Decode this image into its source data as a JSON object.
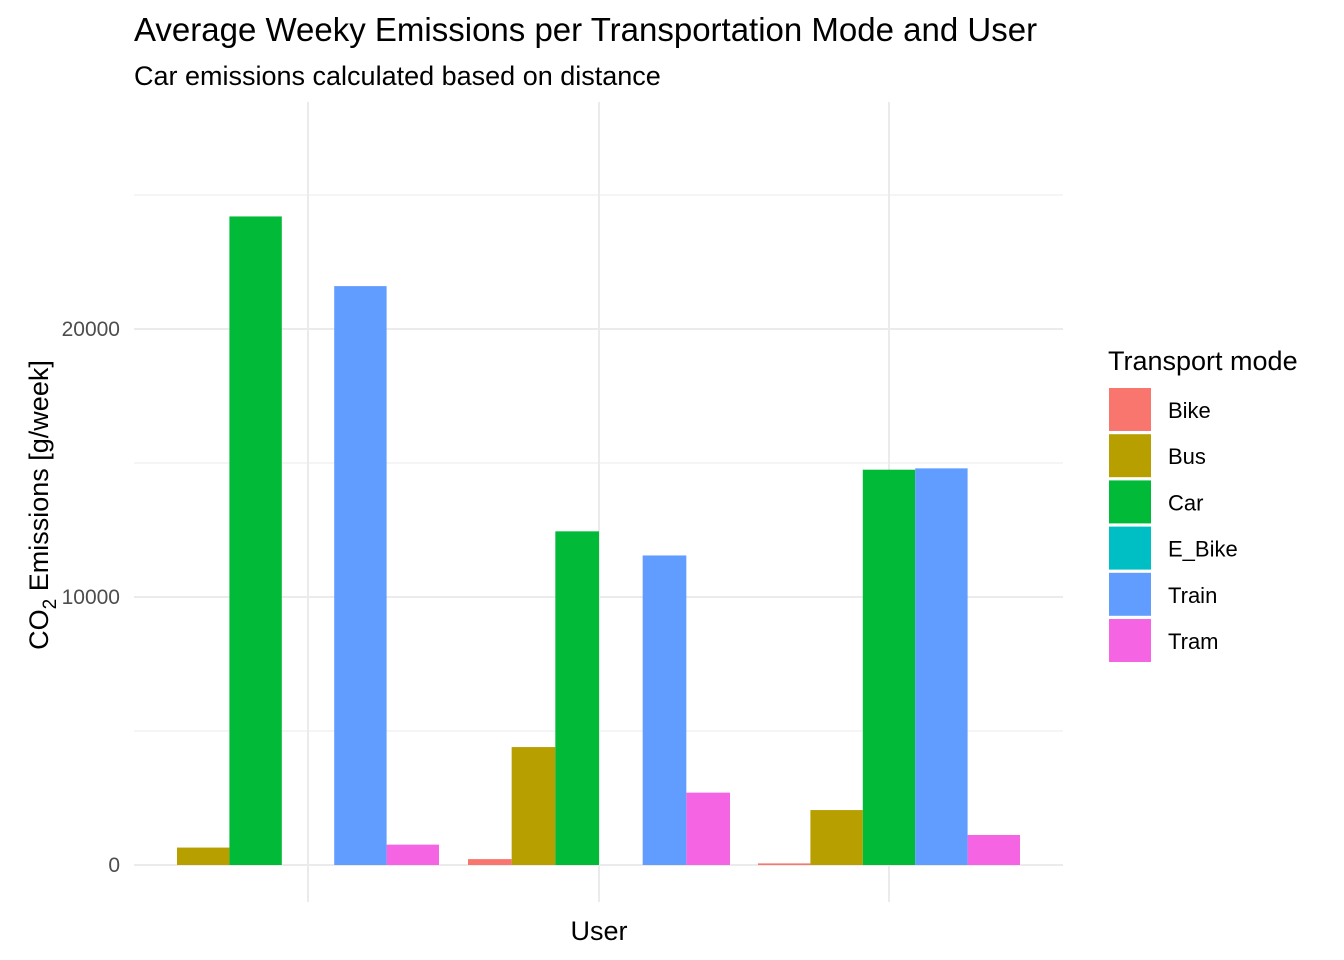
{
  "chart_data": {
    "type": "bar",
    "title": "Average Weeky Emissions per Transportation Mode and User",
    "subtitle": "Car emissions calculated based on distance",
    "xlabel": "User",
    "ylabel_main": "CO",
    "ylabel_sub": "2",
    "ylabel_rest": " Emissions [g/week]",
    "ylim": [
      -1200,
      27500
    ],
    "yticks": [
      0,
      10000,
      20000
    ],
    "ytick_labels": [
      "0",
      "10000",
      "20000"
    ],
    "grid": true,
    "legend": {
      "title": "Transport mode",
      "placement": "right"
    },
    "groups": [
      "",
      "",
      ""
    ],
    "series": [
      {
        "name": "Bike",
        "color": "#F8766D",
        "values": [
          null,
          220,
          60
        ]
      },
      {
        "name": "Bus",
        "color": "#B79F00",
        "values": [
          650,
          4400,
          2050
        ]
      },
      {
        "name": "Car",
        "color": "#00BA38",
        "values": [
          24200,
          12450,
          14750
        ]
      },
      {
        "name": "E_Bike",
        "color": "#00BFC4",
        "values": [
          null,
          null,
          null
        ]
      },
      {
        "name": "Train",
        "color": "#619CFF",
        "values": [
          21600,
          11550,
          14800
        ]
      },
      {
        "name": "Tram",
        "color": "#F564E3",
        "values": [
          760,
          2700,
          1120
        ]
      }
    ],
    "bar_layout": [
      [
        "Bus",
        "Car",
        null,
        "Train",
        "Tram"
      ],
      [
        "Bike",
        "Bus",
        "Car",
        null,
        "Train",
        "Tram"
      ],
      [
        "Bike",
        "Bus",
        "Car",
        "Train",
        "Tram"
      ]
    ]
  }
}
